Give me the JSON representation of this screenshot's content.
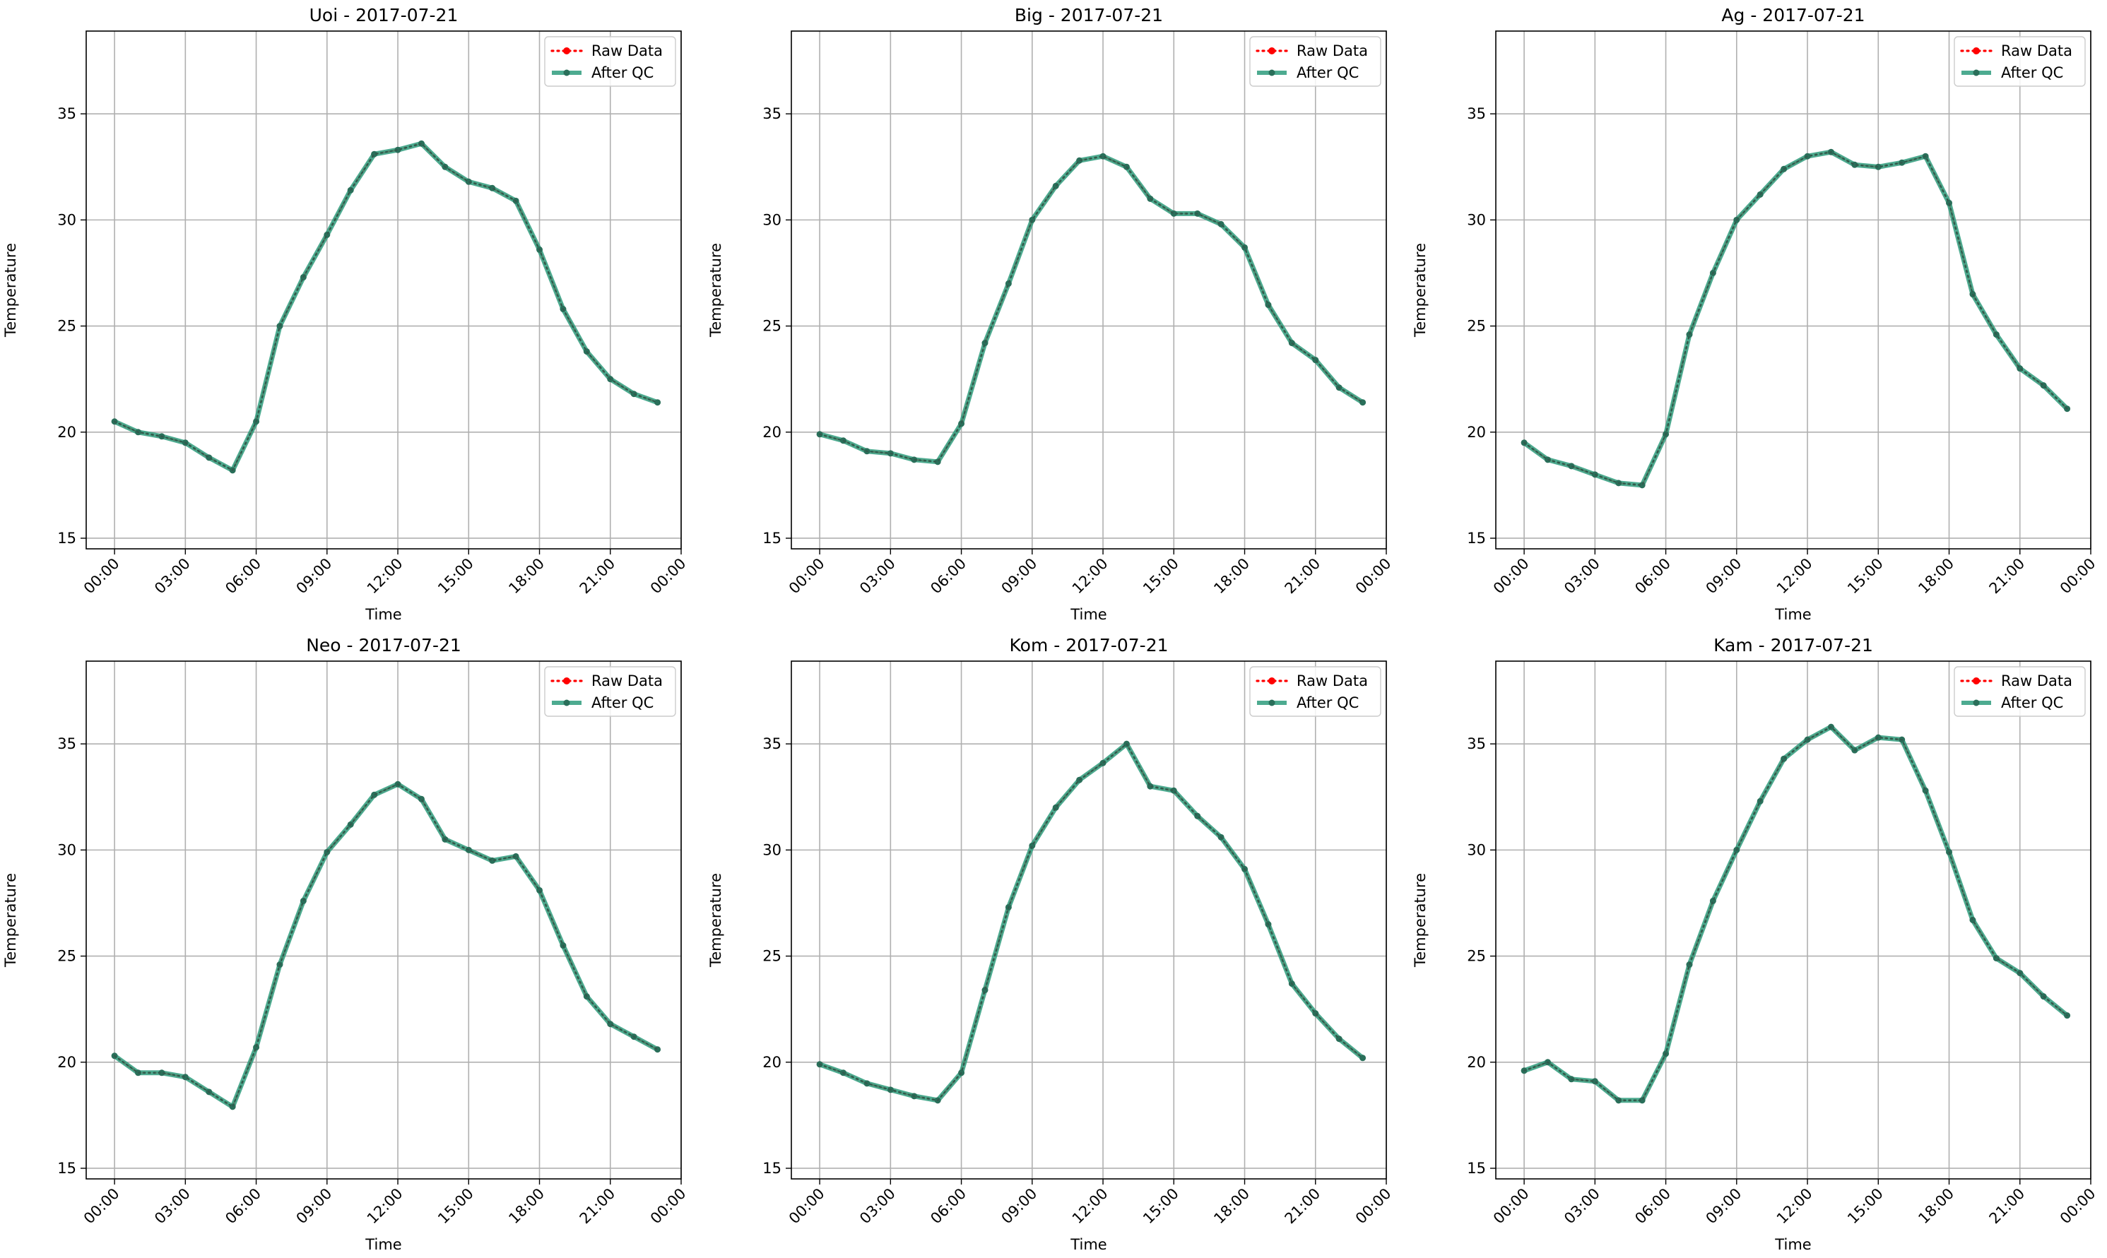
{
  "figure": {
    "rows": 2,
    "cols": 3
  },
  "legend_labels": {
    "raw": "Raw Data",
    "qc": "After QC"
  },
  "colors": {
    "raw": "#ff0000",
    "qc": "#2e9c7c",
    "qc_marker": "#2a6f5a",
    "grid": "#b0b0b0"
  },
  "chart_data": [
    {
      "type": "line",
      "title": "Uoi - 2017-07-21",
      "xlabel": "Time",
      "ylabel": "Temperature",
      "x_ticks": [
        "00:00",
        "03:00",
        "06:00",
        "09:00",
        "12:00",
        "15:00",
        "18:00",
        "21:00",
        "00:00"
      ],
      "y_ticks": [
        "15",
        "20",
        "25",
        "30",
        "35"
      ],
      "ylim": [
        14.5,
        38.9
      ],
      "x_range_hours": [
        -1.2,
        24.0
      ],
      "grid": true,
      "legend_placement": "top-right",
      "x_hours": [
        0,
        1,
        2,
        3,
        4,
        5,
        6,
        7,
        8,
        9,
        10,
        11,
        12,
        13,
        14,
        15,
        16,
        17,
        18,
        19,
        20,
        21,
        22,
        23
      ],
      "series": [
        {
          "name": "Raw Data",
          "values": [
            20.5,
            20.0,
            19.8,
            19.5,
            18.8,
            18.2,
            20.5,
            25.0,
            27.3,
            29.3,
            31.4,
            33.1,
            33.3,
            33.6,
            32.5,
            31.8,
            31.5,
            30.9,
            28.6,
            25.8,
            23.8,
            22.5,
            21.8,
            21.4
          ]
        },
        {
          "name": "After QC",
          "values": [
            20.5,
            20.0,
            19.8,
            19.5,
            18.8,
            18.2,
            20.5,
            25.0,
            27.3,
            29.3,
            31.4,
            33.1,
            33.3,
            33.6,
            32.5,
            31.8,
            31.5,
            30.9,
            28.6,
            25.8,
            23.8,
            22.5,
            21.8,
            21.4
          ]
        }
      ]
    },
    {
      "type": "line",
      "title": "Big - 2017-07-21",
      "xlabel": "Time",
      "ylabel": "Temperature",
      "x_ticks": [
        "00:00",
        "03:00",
        "06:00",
        "09:00",
        "12:00",
        "15:00",
        "18:00",
        "21:00",
        "00:00"
      ],
      "y_ticks": [
        "15",
        "20",
        "25",
        "30",
        "35"
      ],
      "ylim": [
        14.5,
        38.9
      ],
      "x_range_hours": [
        -1.2,
        24.0
      ],
      "grid": true,
      "legend_placement": "top-right",
      "x_hours": [
        0,
        1,
        2,
        3,
        4,
        5,
        6,
        7,
        8,
        9,
        10,
        11,
        12,
        13,
        14,
        15,
        16,
        17,
        18,
        19,
        20,
        21,
        22,
        23
      ],
      "series": [
        {
          "name": "Raw Data",
          "values": [
            19.9,
            19.6,
            19.1,
            19.0,
            18.7,
            18.6,
            20.4,
            24.2,
            27.0,
            30.0,
            31.6,
            32.8,
            33.0,
            32.5,
            31.0,
            30.3,
            30.3,
            29.8,
            28.7,
            26.0,
            24.2,
            23.4,
            22.1,
            21.4
          ]
        },
        {
          "name": "After QC",
          "values": [
            19.9,
            19.6,
            19.1,
            19.0,
            18.7,
            18.6,
            20.4,
            24.2,
            27.0,
            30.0,
            31.6,
            32.8,
            33.0,
            32.5,
            31.0,
            30.3,
            30.3,
            29.8,
            28.7,
            26.0,
            24.2,
            23.4,
            22.1,
            21.4
          ]
        }
      ]
    },
    {
      "type": "line",
      "title": "Ag - 2017-07-21",
      "xlabel": "Time",
      "ylabel": "Temperature",
      "x_ticks": [
        "00:00",
        "03:00",
        "06:00",
        "09:00",
        "12:00",
        "15:00",
        "18:00",
        "21:00",
        "00:00"
      ],
      "y_ticks": [
        "15",
        "20",
        "25",
        "30",
        "35"
      ],
      "ylim": [
        14.5,
        38.9
      ],
      "x_range_hours": [
        -1.2,
        24.0
      ],
      "grid": true,
      "legend_placement": "top-right",
      "x_hours": [
        0,
        1,
        2,
        3,
        4,
        5,
        6,
        7,
        8,
        9,
        10,
        11,
        12,
        13,
        14,
        15,
        16,
        17,
        18,
        19,
        20,
        21,
        22,
        23
      ],
      "series": [
        {
          "name": "Raw Data",
          "values": [
            19.5,
            18.7,
            18.4,
            18.0,
            17.6,
            17.5,
            19.9,
            24.6,
            27.5,
            30.0,
            31.2,
            32.4,
            33.0,
            33.2,
            32.6,
            32.5,
            32.7,
            33.0,
            30.8,
            26.5,
            24.6,
            23.0,
            22.2,
            21.1
          ]
        },
        {
          "name": "After QC",
          "values": [
            19.5,
            18.7,
            18.4,
            18.0,
            17.6,
            17.5,
            19.9,
            24.6,
            27.5,
            30.0,
            31.2,
            32.4,
            33.0,
            33.2,
            32.6,
            32.5,
            32.7,
            33.0,
            30.8,
            26.5,
            24.6,
            23.0,
            22.2,
            21.1
          ]
        }
      ]
    },
    {
      "type": "line",
      "title": "Neo - 2017-07-21",
      "xlabel": "Time",
      "ylabel": "Temperature",
      "x_ticks": [
        "00:00",
        "03:00",
        "06:00",
        "09:00",
        "12:00",
        "15:00",
        "18:00",
        "21:00",
        "00:00"
      ],
      "y_ticks": [
        "15",
        "20",
        "25",
        "30",
        "35"
      ],
      "ylim": [
        14.5,
        38.9
      ],
      "x_range_hours": [
        -1.2,
        24.0
      ],
      "grid": true,
      "legend_placement": "top-right",
      "x_hours": [
        0,
        1,
        2,
        3,
        4,
        5,
        6,
        7,
        8,
        9,
        10,
        11,
        12,
        13,
        14,
        15,
        16,
        17,
        18,
        19,
        20,
        21,
        22,
        23
      ],
      "series": [
        {
          "name": "Raw Data",
          "values": [
            20.3,
            19.5,
            19.5,
            19.3,
            18.6,
            17.9,
            20.7,
            24.6,
            27.6,
            29.9,
            31.2,
            32.6,
            33.1,
            32.4,
            30.5,
            30.0,
            29.5,
            29.7,
            28.1,
            25.5,
            23.1,
            21.8,
            21.2,
            20.6
          ]
        },
        {
          "name": "After QC",
          "values": [
            20.3,
            19.5,
            19.5,
            19.3,
            18.6,
            17.9,
            20.7,
            24.6,
            27.6,
            29.9,
            31.2,
            32.6,
            33.1,
            32.4,
            30.5,
            30.0,
            29.5,
            29.7,
            28.1,
            25.5,
            23.1,
            21.8,
            21.2,
            20.6
          ]
        }
      ]
    },
    {
      "type": "line",
      "title": "Kom - 2017-07-21",
      "xlabel": "Time",
      "ylabel": "Temperature",
      "x_ticks": [
        "00:00",
        "03:00",
        "06:00",
        "09:00",
        "12:00",
        "15:00",
        "18:00",
        "21:00",
        "00:00"
      ],
      "y_ticks": [
        "15",
        "20",
        "25",
        "30",
        "35"
      ],
      "ylim": [
        14.5,
        38.9
      ],
      "x_range_hours": [
        -1.2,
        24.0
      ],
      "grid": true,
      "legend_placement": "top-right",
      "x_hours": [
        0,
        1,
        2,
        3,
        4,
        5,
        6,
        7,
        8,
        9,
        10,
        11,
        12,
        13,
        14,
        15,
        16,
        17,
        18,
        19,
        20,
        21,
        22,
        23
      ],
      "series": [
        {
          "name": "Raw Data",
          "values": [
            19.9,
            19.5,
            19.0,
            18.7,
            18.4,
            18.2,
            19.5,
            23.4,
            27.3,
            30.2,
            32.0,
            33.3,
            34.1,
            35.0,
            33.0,
            32.8,
            31.6,
            30.6,
            29.1,
            26.5,
            23.7,
            22.3,
            21.1,
            20.2
          ]
        },
        {
          "name": "After QC",
          "values": [
            19.9,
            19.5,
            19.0,
            18.7,
            18.4,
            18.2,
            19.5,
            23.4,
            27.3,
            30.2,
            32.0,
            33.3,
            34.1,
            35.0,
            33.0,
            32.8,
            31.6,
            30.6,
            29.1,
            26.5,
            23.7,
            22.3,
            21.1,
            20.2
          ]
        }
      ]
    },
    {
      "type": "line",
      "title": "Kam - 2017-07-21",
      "xlabel": "Time",
      "ylabel": "Temperature",
      "x_ticks": [
        "00:00",
        "03:00",
        "06:00",
        "09:00",
        "12:00",
        "15:00",
        "18:00",
        "21:00",
        "00:00"
      ],
      "y_ticks": [
        "15",
        "20",
        "25",
        "30",
        "35"
      ],
      "ylim": [
        14.5,
        38.9
      ],
      "x_range_hours": [
        -1.2,
        24.0
      ],
      "grid": true,
      "legend_placement": "top-right",
      "x_hours": [
        0,
        1,
        2,
        3,
        4,
        5,
        6,
        7,
        8,
        9,
        10,
        11,
        12,
        13,
        14,
        15,
        16,
        17,
        18,
        19,
        20,
        21,
        22,
        23
      ],
      "series": [
        {
          "name": "Raw Data",
          "values": [
            19.6,
            20.0,
            19.2,
            19.1,
            18.2,
            18.2,
            20.4,
            24.6,
            27.6,
            30.0,
            32.3,
            34.3,
            35.2,
            35.8,
            34.7,
            35.3,
            35.2,
            32.8,
            29.9,
            26.7,
            24.9,
            24.2,
            23.1,
            22.2
          ]
        },
        {
          "name": "After QC",
          "values": [
            19.6,
            20.0,
            19.2,
            19.1,
            18.2,
            18.2,
            20.4,
            24.6,
            27.6,
            30.0,
            32.3,
            34.3,
            35.2,
            35.8,
            34.7,
            35.3,
            35.2,
            32.8,
            29.9,
            26.7,
            24.9,
            24.2,
            23.1,
            22.2
          ]
        }
      ]
    }
  ]
}
